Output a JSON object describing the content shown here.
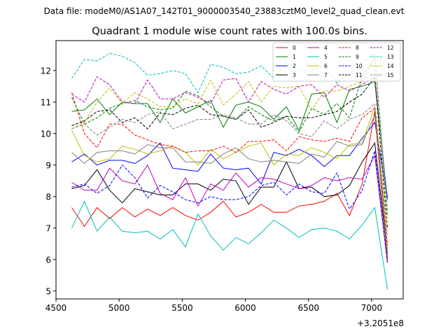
{
  "chart_data": {
    "type": "line",
    "suptitle": "Data file: modeM0/AS1A07_142T01_9000003540_23883cztM0_level2_quad_clean.evt",
    "title": "Quadrant 1 module wise count rates with 100.0s bins.",
    "offset_text": "+3.2051e8",
    "xlabel": "",
    "ylabel": "",
    "xlim": [
      4500,
      7250
    ],
    "ylim": [
      4.75,
      12.95
    ],
    "xticks": [
      4500,
      5000,
      5500,
      6000,
      6500,
      7000
    ],
    "yticks": [
      5,
      6,
      7,
      8,
      9,
      10,
      11,
      12
    ],
    "grid": false,
    "legend_position": "top-right",
    "x": [
      4625,
      4725,
      4825,
      4925,
      5025,
      5125,
      5225,
      5325,
      5425,
      5525,
      5625,
      5725,
      5825,
      5925,
      6025,
      6125,
      6225,
      6325,
      6425,
      6525,
      6625,
      6725,
      6825,
      6925,
      7025,
      7125
    ],
    "series": [
      {
        "name": "0",
        "color": "#ff0000",
        "dash": "solid",
        "values": [
          7.65,
          7.05,
          7.65,
          7.3,
          7.65,
          7.35,
          7.6,
          7.4,
          7.65,
          7.4,
          7.25,
          7.5,
          7.85,
          7.35,
          7.5,
          7.75,
          7.5,
          7.5,
          7.7,
          7.75,
          7.85,
          8.1,
          7.4,
          8.4,
          10.7,
          6.0
        ]
      },
      {
        "name": "1",
        "color": "#008000",
        "dash": "solid",
        "values": [
          10.7,
          10.75,
          11.1,
          10.6,
          11.0,
          10.95,
          10.95,
          10.35,
          11.1,
          10.65,
          10.85,
          11.05,
          10.2,
          10.9,
          11.0,
          10.85,
          10.45,
          10.85,
          10.1,
          11.25,
          11.3,
          10.35,
          11.4,
          11.5,
          11.65,
          7.9
        ]
      },
      {
        "name": "2",
        "color": "#0000ff",
        "dash": "solid",
        "values": [
          9.1,
          9.35,
          9.0,
          9.15,
          9.15,
          9.05,
          9.3,
          9.7,
          8.9,
          8.85,
          8.8,
          9.35,
          8.9,
          8.85,
          8.9,
          8.4,
          9.4,
          9.3,
          9.5,
          9.3,
          8.95,
          9.3,
          9.3,
          9.85,
          10.35,
          8.0
        ]
      },
      {
        "name": "3",
        "color": "#000000",
        "dash": "solid",
        "values": [
          8.25,
          8.35,
          8.85,
          8.2,
          7.8,
          8.25,
          8.15,
          8.05,
          8.05,
          8.4,
          8.4,
          8.2,
          8.55,
          8.5,
          7.75,
          8.3,
          8.3,
          9.1,
          8.25,
          8.3,
          8.0,
          8.05,
          8.35,
          9.1,
          9.7,
          6.2
        ]
      },
      {
        "name": "4",
        "color": "#bf00bf",
        "dash": "solid",
        "values": [
          8.45,
          8.2,
          8.2,
          8.9,
          8.5,
          8.4,
          9.0,
          8.1,
          7.9,
          8.6,
          7.7,
          8.4,
          8.2,
          8.75,
          8.3,
          8.6,
          8.55,
          8.4,
          8.25,
          8.35,
          8.6,
          8.5,
          8.6,
          8.55,
          9.3,
          5.9
        ]
      },
      {
        "name": "5",
        "color": "#00bfbf",
        "dash": "solid",
        "values": [
          7.0,
          7.85,
          6.9,
          7.35,
          6.9,
          6.85,
          6.9,
          6.65,
          6.95,
          6.4,
          7.45,
          6.75,
          6.3,
          6.7,
          6.5,
          6.85,
          7.25,
          7.0,
          6.7,
          6.95,
          7.0,
          6.9,
          6.65,
          7.1,
          7.65,
          5.05
        ]
      },
      {
        "name": "6",
        "color": "#bfbf00",
        "dash": "solid",
        "values": [
          10.1,
          9.3,
          9.1,
          9.2,
          9.6,
          9.5,
          9.35,
          9.45,
          9.6,
          9.4,
          9.0,
          9.5,
          9.2,
          9.4,
          9.6,
          9.7,
          9.0,
          9.35,
          9.3,
          9.55,
          9.4,
          9.2,
          9.65,
          9.7,
          10.85,
          6.3
        ]
      },
      {
        "name": "7",
        "color": "#808080",
        "dash": "solid",
        "values": [
          9.4,
          9.05,
          9.4,
          9.45,
          9.45,
          9.35,
          9.65,
          9.55,
          9.55,
          9.1,
          9.1,
          9.05,
          9.35,
          9.55,
          9.2,
          9.1,
          9.15,
          9.1,
          9.05,
          9.35,
          9.25,
          9.75,
          9.6,
          9.65,
          10.6,
          6.15
        ]
      },
      {
        "name": "8",
        "color": "#ff0000",
        "dash": "dashed",
        "values": [
          11.3,
          10.0,
          9.55,
          10.3,
          10.3,
          9.95,
          9.8,
          9.65,
          9.6,
          9.4,
          9.45,
          9.45,
          9.6,
          9.4,
          9.75,
          9.75,
          9.8,
          9.45,
          9.9,
          9.8,
          9.75,
          9.85,
          9.75,
          10.5,
          10.8,
          6.45
        ]
      },
      {
        "name": "9",
        "color": "#008000",
        "dash": "dashed",
        "values": [
          11.15,
          10.3,
          10.5,
          10.8,
          10.95,
          11.05,
          10.85,
          10.75,
          10.8,
          11.35,
          11.2,
          10.85,
          10.55,
          10.45,
          10.85,
          10.6,
          10.4,
          10.55,
          10.05,
          10.8,
          10.6,
          10.95,
          10.5,
          11.8,
          12.4,
          7.4
        ]
      },
      {
        "name": "10",
        "color": "#0000ff",
        "dash": "dashed",
        "values": [
          8.3,
          8.4,
          8.1,
          8.35,
          9.0,
          8.6,
          7.95,
          8.35,
          8.15,
          7.9,
          7.8,
          8.0,
          7.9,
          7.9,
          8.0,
          8.35,
          8.45,
          8.05,
          8.4,
          8.15,
          8.1,
          8.75,
          7.6,
          8.2,
          9.45,
          5.9
        ]
      },
      {
        "name": "11",
        "color": "#000000",
        "dash": "dashed",
        "values": [
          10.25,
          10.4,
          10.7,
          10.75,
          10.35,
          10.5,
          10.15,
          10.65,
          10.6,
          10.8,
          10.9,
          10.6,
          10.55,
          10.45,
          10.75,
          10.2,
          10.35,
          10.55,
          10.5,
          10.5,
          10.6,
          10.7,
          11.0,
          11.25,
          11.8,
          7.0
        ]
      },
      {
        "name": "12",
        "color": "#bf00bf",
        "dash": "dashed",
        "values": [
          11.25,
          11.0,
          11.8,
          11.55,
          11.0,
          10.95,
          11.7,
          11.1,
          11.1,
          11.3,
          11.15,
          10.95,
          11.7,
          11.75,
          11.0,
          11.65,
          11.4,
          11.25,
          11.5,
          11.55,
          11.15,
          11.55,
          11.35,
          11.55,
          11.8,
          7.9
        ]
      },
      {
        "name": "13",
        "color": "#00bfbf",
        "dash": "dashed",
        "values": [
          11.75,
          12.35,
          12.3,
          12.55,
          12.45,
          12.25,
          11.85,
          11.9,
          12.0,
          11.9,
          11.3,
          12.2,
          12.1,
          11.9,
          11.95,
          12.15,
          11.75,
          12.25,
          12.0,
          12.0,
          12.15,
          11.6,
          11.9,
          12.25,
          12.55,
          7.55
        ]
      },
      {
        "name": "14",
        "color": "#bfbf00",
        "dash": "dashed",
        "values": [
          10.15,
          10.35,
          11.0,
          11.45,
          10.95,
          11.3,
          11.1,
          10.85,
          10.85,
          11.1,
          10.95,
          11.7,
          10.9,
          11.25,
          11.65,
          11.0,
          11.5,
          11.45,
          11.5,
          10.75,
          11.35,
          11.35,
          11.5,
          11.65,
          12.45,
          7.1
        ]
      },
      {
        "name": "15",
        "color": "#808080",
        "dash": "dashed",
        "values": [
          10.15,
          10.3,
          9.95,
          10.2,
          10.45,
          10.35,
          10.6,
          10.7,
          10.15,
          10.3,
          10.45,
          10.45,
          10.6,
          10.5,
          10.3,
          10.3,
          10.6,
          10.4,
          10.0,
          9.9,
          10.4,
          10.15,
          10.45,
          10.6,
          10.95,
          6.8
        ]
      }
    ]
  }
}
